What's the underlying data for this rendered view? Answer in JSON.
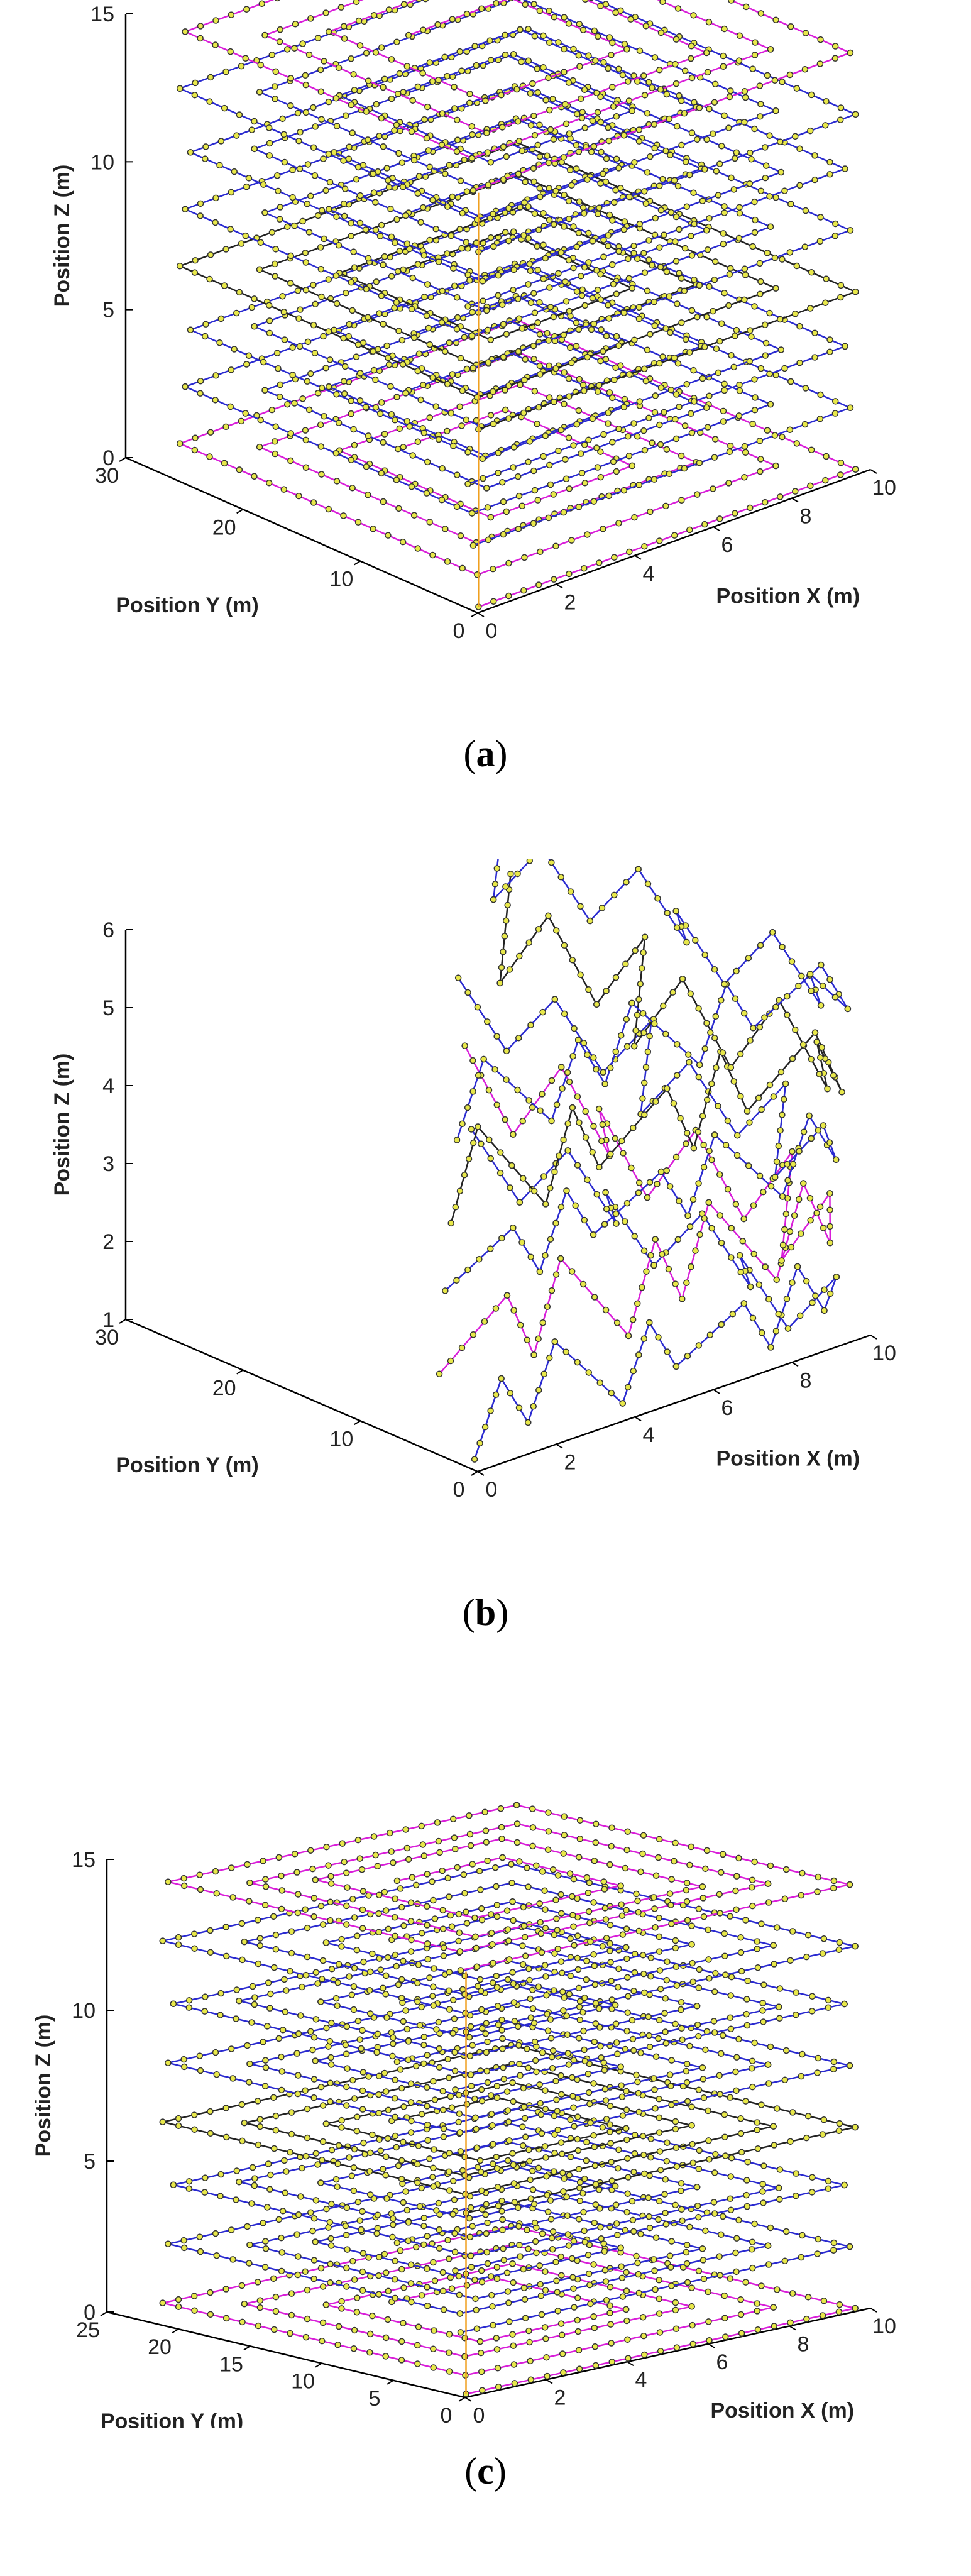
{
  "colors": {
    "path_a": "#2a2ad0",
    "path_b": "#d91ed9",
    "path_c": "#222222",
    "vertical": "#f0a020",
    "marker": "#e8e84a",
    "axis": "#000000"
  },
  "chart_data": [
    {
      "type": "line3d",
      "caption": "a",
      "xlabel": "Position X (m)",
      "ylabel": "Position Y (m)",
      "zlabel": "Position Z (m)",
      "xlim": [
        0,
        10
      ],
      "ylim": [
        0,
        30
      ],
      "zlim": [
        0,
        15
      ],
      "xticks": [
        "0",
        "2",
        "4",
        "6",
        "8",
        "10"
      ],
      "yticks": [
        "0",
        "10",
        "20",
        "30"
      ],
      "zticks": [
        "0",
        "5",
        "10",
        "15"
      ],
      "layers": [
        0,
        2,
        4,
        6,
        8,
        10,
        12,
        14
      ],
      "layer_shape": "concentric rectangular spiral",
      "box": [
        10,
        30
      ]
    },
    {
      "type": "line3d",
      "caption": "b",
      "xlabel": "Position X (m)",
      "ylabel": "Position Y (m)",
      "zlabel": "Position Z (m)",
      "xlim": [
        0,
        10
      ],
      "ylim": [
        0,
        30
      ],
      "zlim": [
        1,
        6
      ],
      "xticks": [
        "0",
        "2",
        "4",
        "6",
        "8",
        "10"
      ],
      "yticks": [
        "0",
        "10",
        "20",
        "30"
      ],
      "zticks": [
        "1",
        "2",
        "3",
        "4",
        "5",
        "6"
      ],
      "layers": [
        1.5,
        2.5,
        3.5,
        4.5,
        5.5
      ],
      "layer_shape": "zig-zag vertical sweeps",
      "box": [
        10,
        30
      ]
    },
    {
      "type": "line3d",
      "caption": "c",
      "xlabel": "Position X (m)",
      "ylabel": "Position Y (m)",
      "zlabel": "Position Z (m)",
      "xlim": [
        10,
        0
      ],
      "ylim": [
        0,
        25
      ],
      "zlim": [
        0,
        15
      ],
      "xticks": [
        "0",
        "2",
        "4",
        "6",
        "8",
        "10"
      ],
      "yticks": [
        "0",
        "5",
        "10",
        "15",
        "20",
        "25"
      ],
      "zticks": [
        "0",
        "5",
        "10",
        "15"
      ],
      "layers": [
        0,
        2,
        4,
        6,
        8,
        10,
        12,
        14
      ],
      "layer_shape": "concentric rectangular spiral",
      "box": [
        10,
        25
      ]
    }
  ]
}
